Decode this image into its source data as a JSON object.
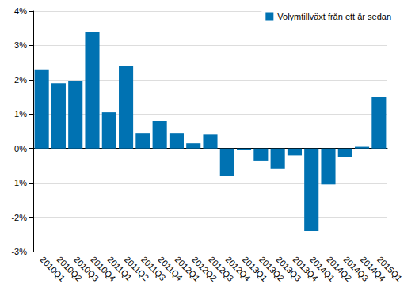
{
  "chart_data": {
    "type": "bar",
    "categories": [
      "2010Q1",
      "2010Q2",
      "2010Q3",
      "2010Q4",
      "2011Q1",
      "2011Q2",
      "2011Q3",
      "2011Q4",
      "2012Q1",
      "2012Q2",
      "2012Q3",
      "2012Q4",
      "2013Q1",
      "2013Q2",
      "2013Q3",
      "2013Q4",
      "2014Q1",
      "2014Q2",
      "2014Q3",
      "2014Q4",
      "2015Q1"
    ],
    "series": [
      {
        "name": "Volymtillväxt från ett år sedan",
        "color": "#0072b2",
        "values": [
          2.3,
          1.9,
          1.95,
          3.4,
          1.05,
          2.4,
          0.45,
          0.8,
          0.45,
          0.15,
          0.4,
          -0.8,
          -0.05,
          -0.35,
          -0.6,
          -0.2,
          -2.4,
          -1.05,
          -0.25,
          0.05,
          1.5
        ]
      }
    ],
    "ylim": [
      -3,
      4
    ],
    "yticks": [
      {
        "value": -3,
        "label": "-3%"
      },
      {
        "value": -2,
        "label": "-2%"
      },
      {
        "value": -1,
        "label": "-1%"
      },
      {
        "value": 0,
        "label": "0%"
      },
      {
        "value": 1,
        "label": "1%"
      },
      {
        "value": 2,
        "label": "2%"
      },
      {
        "value": 3,
        "label": "3%"
      },
      {
        "value": 4,
        "label": "4%"
      }
    ],
    "grid": true,
    "legend": "top-right"
  }
}
